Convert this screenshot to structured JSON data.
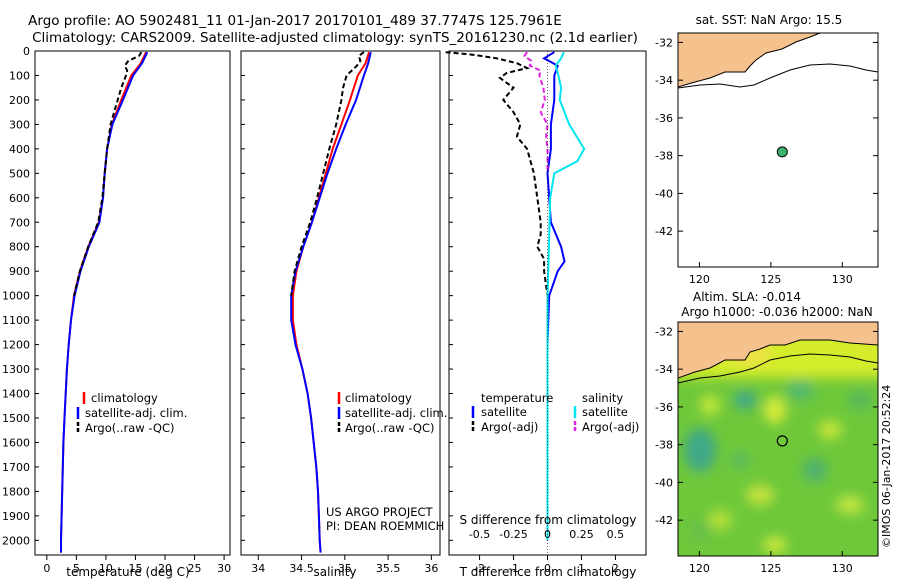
{
  "header": {
    "line1": "Argo profile: AO 5902481_11 01-Jan-2017 20170101_489 37.7747S 125.7961E",
    "line2": "Climatology: CARS2009. Satellite-adjusted climatology: synTS_20161230.nc (2.1d earlier)"
  },
  "colors": {
    "climatology": "#ff0000",
    "satellite": "#0000ff",
    "argo": "#000000",
    "satellite_s": "#00e5ee",
    "argo_s": "#e020e0",
    "land": "#f5c28e",
    "float_marker": "#3cb371"
  },
  "credits": {
    "project": "US ARGO PROJECT",
    "pi": "PI: DEAN ROEMMICH",
    "imos": "©IMOS 06-Jan-2017 20:52:24"
  },
  "depth_ticks": [
    "0",
    "100",
    "200",
    "300",
    "400",
    "500",
    "600",
    "700",
    "800",
    "900",
    "1000",
    "1100",
    "1200",
    "1300",
    "1400",
    "1500",
    "1600",
    "1700",
    "1800",
    "1900",
    "2000"
  ],
  "chart_data": [
    {
      "type": "line",
      "name": "temperature-profile",
      "xlabel": "temperature (deg C)",
      "ylabel": "depth",
      "xlim": [
        -2,
        31
      ],
      "ylim": [
        2060,
        0
      ],
      "xticks": [
        "0",
        "5",
        "10",
        "15",
        "20",
        "25",
        "30"
      ],
      "legend": [
        "climatology",
        "satellite-adj. clim.",
        "Argo(..raw -QC)"
      ],
      "series": [
        {
          "name": "climatology",
          "depth": [
            5,
            50,
            100,
            200,
            300,
            400,
            500,
            600,
            700,
            800,
            900,
            1000,
            1100,
            1200,
            1300,
            1400,
            1500,
            1600,
            1700,
            1800,
            1900,
            2000,
            2050
          ],
          "values": [
            16.8,
            15.9,
            14.3,
            12.6,
            11.0,
            10.2,
            9.8,
            9.5,
            8.8,
            7.0,
            5.6,
            4.6,
            4.1,
            3.7,
            3.4,
            3.2,
            3.0,
            2.8,
            2.7,
            2.6,
            2.5,
            2.4,
            2.4
          ]
        },
        {
          "name": "satellite-adj. clim.",
          "depth": [
            5,
            50,
            100,
            200,
            300,
            400,
            500,
            600,
            700,
            800,
            900,
            1000,
            1100,
            1200,
            1300,
            1400,
            1500,
            1600,
            1700,
            1800,
            1900,
            2000,
            2050
          ],
          "values": [
            17.0,
            16.1,
            14.6,
            12.9,
            11.1,
            10.2,
            9.8,
            9.5,
            8.9,
            7.1,
            5.7,
            4.7,
            4.1,
            3.7,
            3.4,
            3.2,
            3.0,
            2.8,
            2.7,
            2.6,
            2.5,
            2.4,
            2.4
          ]
        },
        {
          "name": "Argo(..raw -QC)",
          "depth": [
            5,
            20,
            40,
            60,
            80,
            100,
            150,
            200,
            300,
            400,
            500,
            600,
            700,
            800,
            900,
            1000
          ],
          "values": [
            16.0,
            15.6,
            13.8,
            13.2,
            13.6,
            13.4,
            12.6,
            12.0,
            10.8,
            10.2,
            9.8,
            9.4,
            8.7,
            7.0,
            5.6,
            4.6
          ]
        }
      ]
    },
    {
      "type": "line",
      "name": "salinity-profile",
      "xlabel": "salinity",
      "xlim": [
        33.8,
        36.1
      ],
      "ylim": [
        2060,
        0
      ],
      "xticks": [
        "34",
        "34.5",
        "35",
        "35.5",
        "36"
      ],
      "legend": [
        "climatology",
        "satellite-adj. clim.",
        "Argo(..raw -QC)"
      ],
      "series": [
        {
          "name": "climatology",
          "depth": [
            5,
            50,
            100,
            200,
            300,
            400,
            500,
            600,
            700,
            800,
            900,
            1000,
            1100,
            1200,
            1300,
            1400,
            1500,
            1600,
            1700,
            1800,
            1900,
            2000,
            2050
          ],
          "values": [
            35.28,
            35.24,
            35.15,
            35.06,
            34.96,
            34.86,
            34.78,
            34.7,
            34.62,
            34.52,
            34.44,
            34.4,
            34.4,
            34.44,
            34.51,
            34.57,
            34.61,
            34.64,
            34.67,
            34.69,
            34.7,
            34.71,
            34.72
          ]
        },
        {
          "name": "satellite-adj. clim.",
          "depth": [
            5,
            50,
            100,
            200,
            300,
            400,
            500,
            600,
            700,
            800,
            900,
            1000,
            1100,
            1200,
            1300,
            1400,
            1500,
            1600,
            1700,
            1800,
            1900,
            2000,
            2050
          ],
          "values": [
            35.3,
            35.27,
            35.22,
            35.13,
            35.01,
            34.9,
            34.8,
            34.71,
            34.62,
            34.52,
            34.43,
            34.38,
            34.38,
            34.43,
            34.51,
            34.57,
            34.61,
            34.64,
            34.67,
            34.69,
            34.7,
            34.71,
            34.72
          ]
        },
        {
          "name": "Argo(..raw -QC)",
          "depth": [
            5,
            20,
            40,
            60,
            100,
            150,
            200,
            300,
            400,
            500,
            600,
            700,
            800,
            900,
            1000
          ],
          "values": [
            35.22,
            35.16,
            35.18,
            35.14,
            35.02,
            34.98,
            34.96,
            34.9,
            34.82,
            34.75,
            34.68,
            34.6,
            34.5,
            34.42,
            34.38
          ]
        }
      ]
    },
    {
      "type": "line",
      "name": "difference-profile",
      "xlabel": "T difference from climatology",
      "xlabel_top": "S difference from climatology",
      "xlim": [
        -2.9,
        2.9
      ],
      "ylim": [
        2060,
        0
      ],
      "xticks": [
        "-2",
        "-1",
        "0",
        "1",
        "2"
      ],
      "xticks_top": [
        "-0.5",
        "-0.25",
        "0",
        "0.25",
        "0.5"
      ],
      "legend_t_title": "temperature",
      "legend_s_title": "salinity",
      "legend": [
        "satellite",
        "Argo(-adj)",
        "satellite",
        "Argo(-adj)"
      ],
      "series": [
        {
          "name": "T satellite",
          "depth": [
            5,
            30,
            60,
            100,
            200,
            300,
            400,
            500,
            600,
            700,
            800,
            860,
            900,
            1000,
            1200,
            1500,
            2000
          ],
          "values": [
            0.2,
            -0.1,
            0.3,
            0.2,
            0.2,
            0.1,
            0.1,
            0.0,
            0.05,
            0.1,
            0.4,
            0.5,
            0.3,
            0.05,
            0.0,
            0.0,
            0.0
          ]
        },
        {
          "name": "T Argo(-adj)",
          "depth": [
            5,
            15,
            30,
            50,
            70,
            90,
            110,
            150,
            200,
            250,
            300,
            350,
            400,
            500,
            600,
            700,
            750,
            800,
            850,
            900,
            1000
          ],
          "values": [
            -3.0,
            -2.2,
            -1.5,
            -0.9,
            -0.6,
            -1.2,
            -1.4,
            -1.0,
            -1.3,
            -1.0,
            -0.8,
            -0.9,
            -0.6,
            -0.4,
            -0.3,
            -0.2,
            -0.2,
            -0.3,
            -0.1,
            -0.1,
            0.0
          ]
        },
        {
          "name": "S satellite",
          "depth": [
            5,
            30,
            60,
            100,
            150,
            200,
            300,
            400,
            450,
            500,
            600,
            800,
            1000,
            1200,
            1500,
            2000
          ],
          "values": [
            0.12,
            0.1,
            0.06,
            0.08,
            0.1,
            0.09,
            0.16,
            0.27,
            0.22,
            0.05,
            0.02,
            0.01,
            0.0,
            0.0,
            0.0,
            0.0
          ]
        },
        {
          "name": "S Argo(-adj)",
          "depth": [
            5,
            20,
            40,
            60,
            80,
            100,
            150,
            200,
            250,
            300,
            350,
            400,
            500
          ],
          "values": [
            -0.15,
            -0.17,
            -0.12,
            -0.13,
            -0.05,
            -0.06,
            -0.03,
            -0.02,
            -0.05,
            0.0,
            -0.01,
            0.0,
            0.0
          ]
        }
      ]
    }
  ],
  "sst_map": {
    "title": "sat. SST: NaN Argo: 15.5",
    "yticks": [
      "-32",
      "-34",
      "-36",
      "-38",
      "-40",
      "-42"
    ],
    "xticks": [
      "120",
      "125",
      "130"
    ],
    "float_lon": 125.8,
    "float_lat": -37.8
  },
  "sla_map": {
    "title1": "Altim. SLA: -0.014",
    "title2": "Argo h1000: -0.036 h2000: NaN",
    "yticks": [
      "-32",
      "-34",
      "-36",
      "-38",
      "-40",
      "-42"
    ],
    "xticks": [
      "120",
      "125",
      "130"
    ],
    "float_lon": 125.8,
    "float_lat": -37.8
  }
}
